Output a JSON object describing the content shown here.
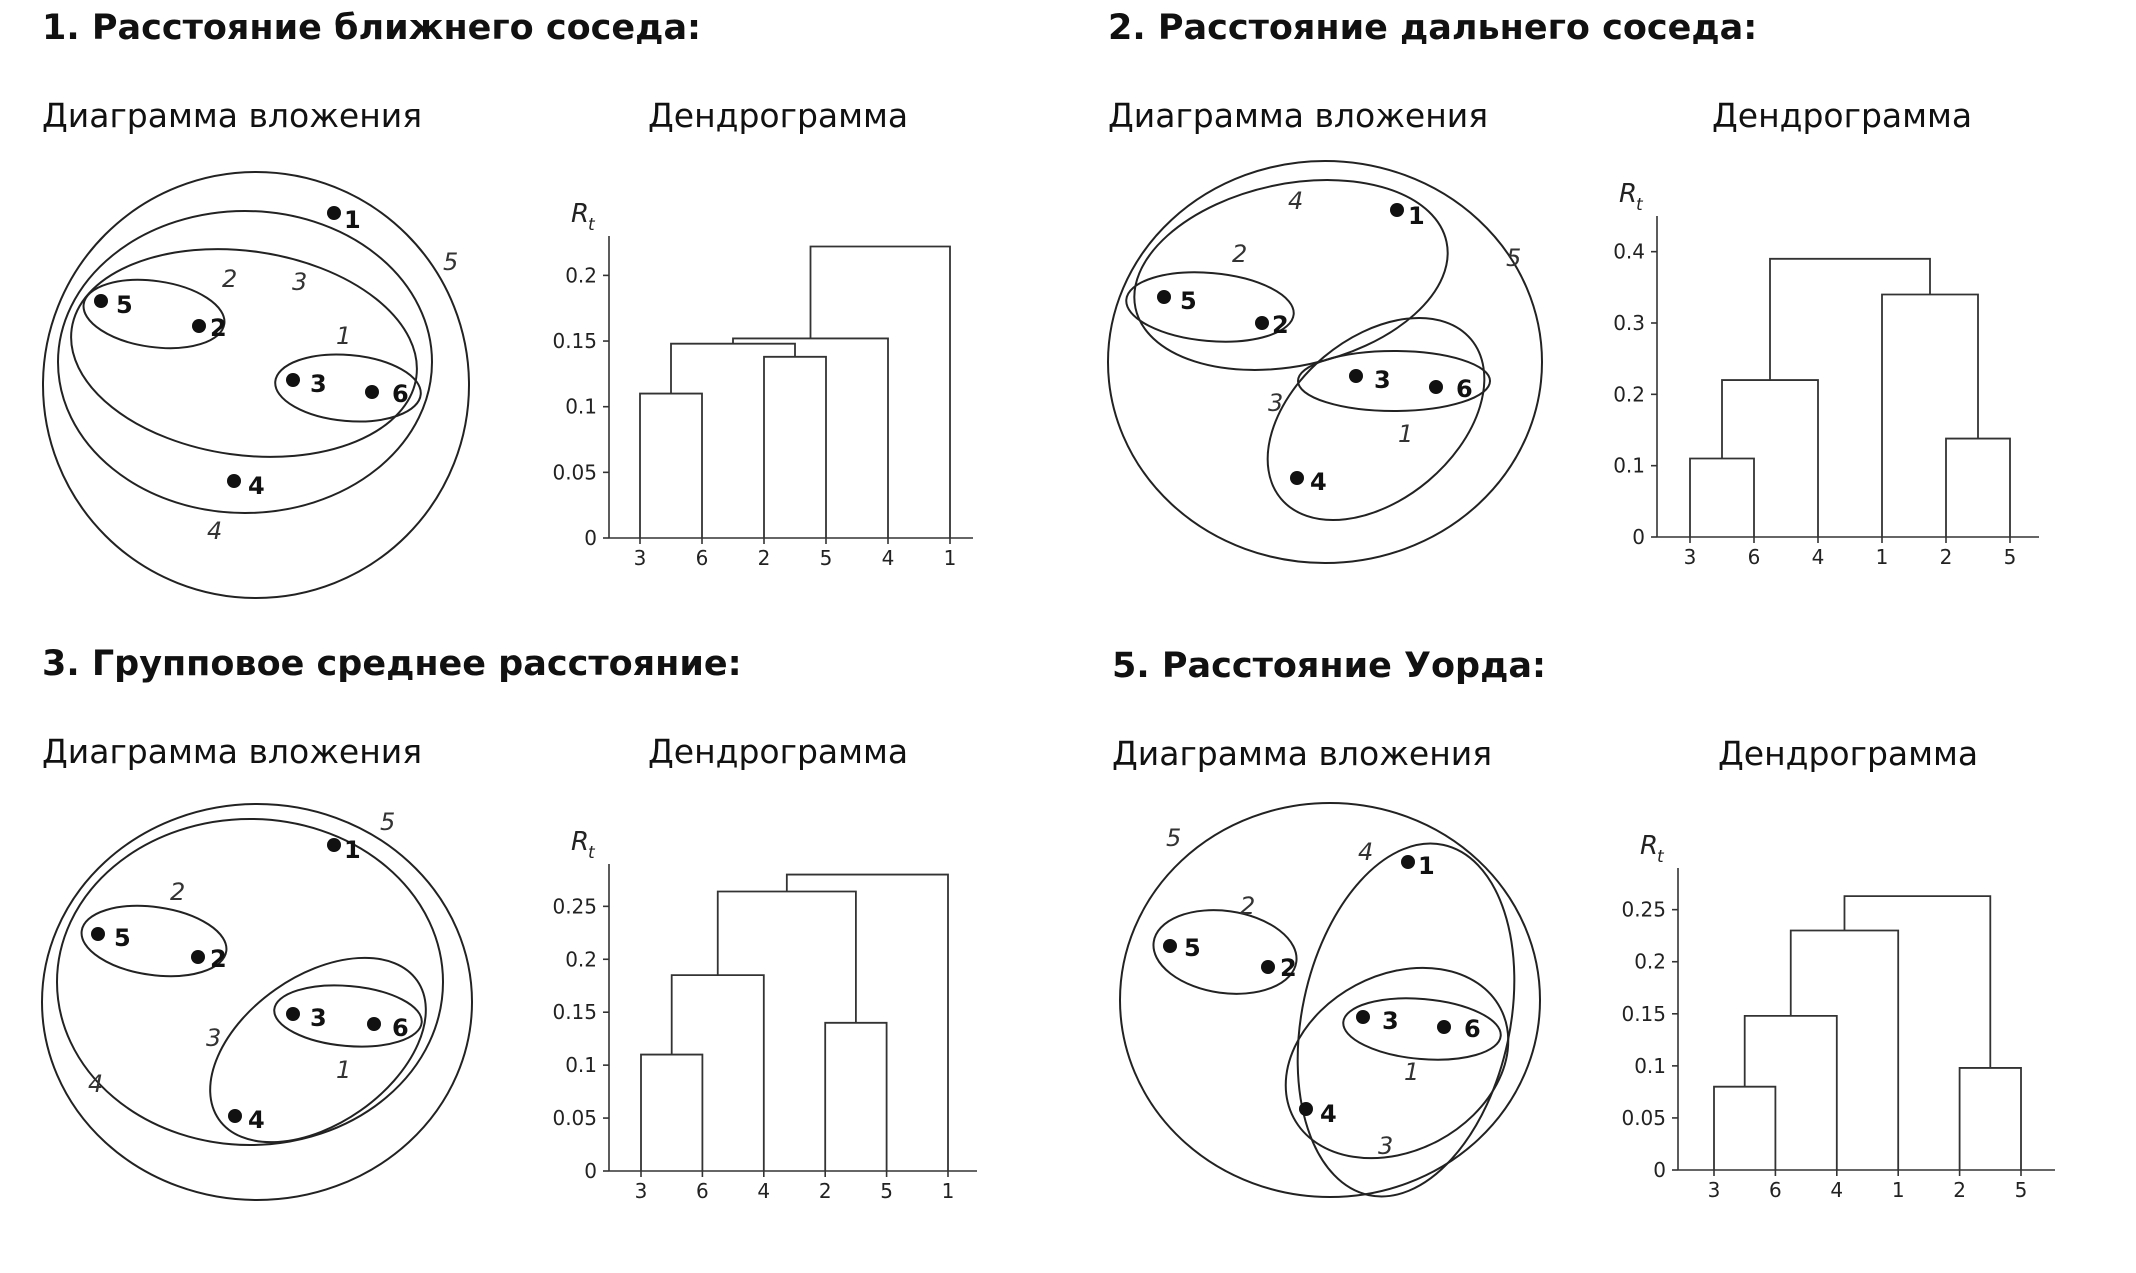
{
  "panels": [
    {
      "title": "1. Расстояние ближнего соседа:",
      "inclusion_title": "Диаграмма вложения",
      "dendrogram_title": "Дендрограмма",
      "points": [
        {
          "label": "1"
        },
        {
          "label": "5"
        },
        {
          "label": "2"
        },
        {
          "label": "3"
        },
        {
          "label": "6"
        },
        {
          "label": "4"
        }
      ],
      "ring_labels": [
        "1",
        "2",
        "3",
        "4",
        "5"
      ]
    },
    {
      "title": "2. Расстояние дальнего соседа:",
      "inclusion_title": "Диаграмма вложения",
      "dendrogram_title": "Дендрограмма",
      "points": [
        {
          "label": "1"
        },
        {
          "label": "5"
        },
        {
          "label": "2"
        },
        {
          "label": "3"
        },
        {
          "label": "6"
        },
        {
          "label": "4"
        }
      ],
      "ring_labels": [
        "1",
        "2",
        "3",
        "4",
        "5"
      ]
    },
    {
      "title": "3. Групповое среднее расстояние:",
      "inclusion_title": "Диаграмма вложения",
      "dendrogram_title": "Дендрограмма",
      "points": [
        {
          "label": "1"
        },
        {
          "label": "5"
        },
        {
          "label": "2"
        },
        {
          "label": "3"
        },
        {
          "label": "6"
        },
        {
          "label": "4"
        }
      ],
      "ring_labels": [
        "1",
        "2",
        "3",
        "4",
        "5"
      ]
    },
    {
      "title": "5. Расстояние Уорда:",
      "inclusion_title": "Диаграмма вложения",
      "dendrogram_title": "Дендрограмма",
      "points": [
        {
          "label": "1"
        },
        {
          "label": "5"
        },
        {
          "label": "2"
        },
        {
          "label": "3"
        },
        {
          "label": "6"
        },
        {
          "label": "4"
        }
      ],
      "ring_labels": [
        "1",
        "2",
        "3",
        "4",
        "5"
      ]
    }
  ],
  "chart_data": [
    {
      "type": "dendrogram",
      "ylabel": "R",
      "ylabel_sub": "t",
      "leaves": [
        "3",
        "6",
        "2",
        "5",
        "4",
        "1"
      ],
      "ylim": [
        0,
        0.23
      ],
      "yticks": [
        0,
        0.05,
        0.1,
        0.15,
        0.2
      ],
      "ytick_labels": [
        "0",
        "0.05",
        "0.1",
        "0.15",
        "0.2"
      ],
      "merges": [
        {
          "left": 0,
          "right": 1,
          "height": 0.11
        },
        {
          "left": 2,
          "right": 3,
          "height": 0.138
        },
        {
          "left": 6,
          "right": 7,
          "height": 0.148
        },
        {
          "left": 8,
          "right": 4,
          "height": 0.152
        },
        {
          "left": 9,
          "right": 5,
          "height": 0.222
        }
      ]
    },
    {
      "type": "dendrogram",
      "ylabel": "R",
      "ylabel_sub": "t",
      "leaves": [
        "3",
        "6",
        "4",
        "1",
        "2",
        "5"
      ],
      "ylim": [
        0,
        0.45
      ],
      "yticks": [
        0,
        0.1,
        0.2,
        0.3,
        0.4
      ],
      "ytick_labels": [
        "0",
        "0.1",
        "0.2",
        "0.3",
        "0.4"
      ],
      "merges": [
        {
          "left": 0,
          "right": 1,
          "height": 0.11
        },
        {
          "left": 4,
          "right": 5,
          "height": 0.138
        },
        {
          "left": 6,
          "right": 2,
          "height": 0.22
        },
        {
          "left": 3,
          "right": 7,
          "height": 0.34
        },
        {
          "left": 8,
          "right": 9,
          "height": 0.39
        }
      ]
    },
    {
      "type": "dendrogram",
      "ylabel": "R",
      "ylabel_sub": "t",
      "leaves": [
        "3",
        "6",
        "4",
        "2",
        "5",
        "1"
      ],
      "ylim": [
        0,
        0.29
      ],
      "yticks": [
        0,
        0.05,
        0.1,
        0.15,
        0.2,
        0.25
      ],
      "ytick_labels": [
        "0",
        "0.05",
        "0.1",
        "0.15",
        "0.2",
        "0.25"
      ],
      "merges": [
        {
          "left": 0,
          "right": 1,
          "height": 0.11
        },
        {
          "left": 3,
          "right": 4,
          "height": 0.14
        },
        {
          "left": 6,
          "right": 2,
          "height": 0.185
        },
        {
          "left": 8,
          "right": 7,
          "height": 0.264
        },
        {
          "left": 9,
          "right": 5,
          "height": 0.28
        }
      ]
    },
    {
      "type": "dendrogram",
      "ylabel": "R",
      "ylabel_sub": "t",
      "leaves": [
        "3",
        "6",
        "4",
        "1",
        "2",
        "5"
      ],
      "ylim": [
        0,
        0.29
      ],
      "yticks": [
        0,
        0.05,
        0.1,
        0.15,
        0.2,
        0.25
      ],
      "ytick_labels": [
        "0",
        "0.05",
        "0.1",
        "0.15",
        "0.2",
        "0.25"
      ],
      "merges": [
        {
          "left": 0,
          "right": 1,
          "height": 0.08
        },
        {
          "left": 4,
          "right": 5,
          "height": 0.098
        },
        {
          "left": 6,
          "right": 2,
          "height": 0.148
        },
        {
          "left": 8,
          "right": 3,
          "height": 0.23
        },
        {
          "left": 9,
          "right": 7,
          "height": 0.263
        }
      ]
    }
  ]
}
